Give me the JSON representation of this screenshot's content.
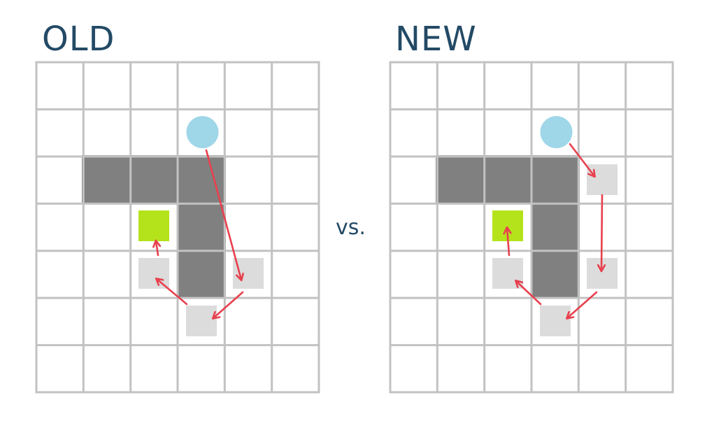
{
  "panels": [
    {
      "id": "old",
      "title": "OLD"
    },
    {
      "id": "new",
      "title": "NEW"
    }
  ],
  "separator": "vs.",
  "colors": {
    "grid_line": "#c2c2c2",
    "wall": "#808080",
    "start_circle": "#9fd6e8",
    "goal_square": "#b5e31b",
    "path_step": "#dcdcdc",
    "arrow": "#e8404e",
    "title": "#234a66"
  }
}
